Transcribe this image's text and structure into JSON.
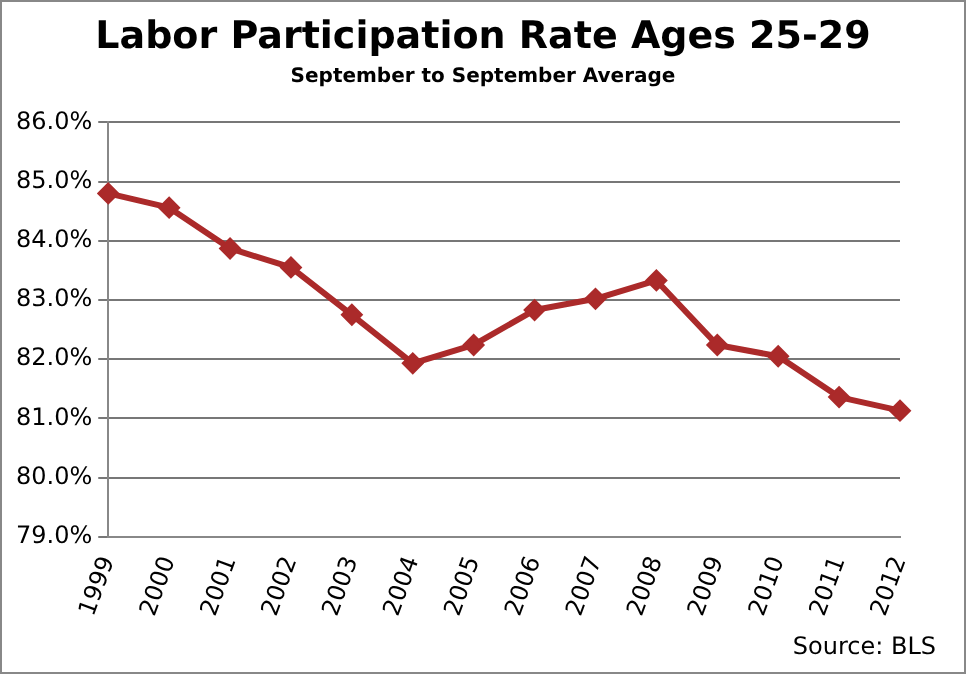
{
  "chart_data": {
    "type": "line",
    "title": "Labor Participation Rate Ages 25-29",
    "subtitle": "September to September Average",
    "categories": [
      "1999",
      "2000",
      "2001",
      "2002",
      "2003",
      "2004",
      "2005",
      "2006",
      "2007",
      "2008",
      "2009",
      "2010",
      "2011",
      "2012"
    ],
    "series": [
      {
        "color": "#ab2a2a",
        "values": [
          84.8,
          84.56,
          83.87,
          83.55,
          82.75,
          81.93,
          82.24,
          82.83,
          83.02,
          83.33,
          82.24,
          82.05,
          81.36,
          81.13
        ]
      }
    ],
    "ylim": [
      79,
      86
    ],
    "yticks": [
      {
        "value": 79,
        "label": "79.0%"
      },
      {
        "value": 80,
        "label": "80.0%"
      },
      {
        "value": 81,
        "label": "81.0%"
      },
      {
        "value": 82,
        "label": "82.0%"
      },
      {
        "value": 83,
        "label": "83.0%"
      },
      {
        "value": 84,
        "label": "84.0%"
      },
      {
        "value": 85,
        "label": "85.0%"
      },
      {
        "value": 86,
        "label": "86.0%"
      }
    ],
    "grid": "y",
    "legend": false,
    "marker": "diamond",
    "line_style": "solid",
    "annotations": [
      "Source:  BLS"
    ]
  }
}
